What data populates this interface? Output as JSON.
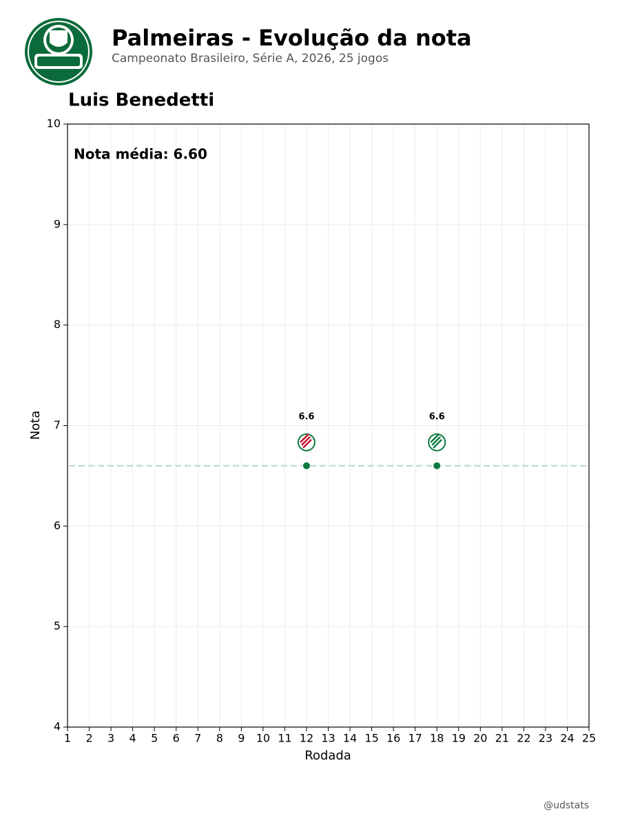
{
  "chart_data": {
    "type": "scatter",
    "title": "Palmeiras - Evolução da nota",
    "subtitle": "Campeonato Brasileiro, Série A, 2026, 25 jogos",
    "player": "Luis Benedetti",
    "annotation": "Nota média: 6.60",
    "mean": 6.6,
    "mean_color": "#b9d8cb",
    "x_label": "Rodada",
    "y_label": "Nota",
    "xlim": [
      1,
      25
    ],
    "xticks": [
      1,
      2,
      3,
      4,
      5,
      6,
      7,
      8,
      9,
      10,
      11,
      12,
      13,
      14,
      15,
      16,
      17,
      18,
      19,
      20,
      21,
      22,
      23,
      24,
      25
    ],
    "ylim": [
      4,
      10
    ],
    "yticks": [
      4,
      5,
      6,
      7,
      8,
      9,
      10
    ],
    "grid": true,
    "series": [
      {
        "color": "#0b7a3e",
        "x": [
          12,
          18
        ],
        "values": [
          6.6,
          6.6
        ]
      }
    ],
    "footer": "@udstats"
  }
}
